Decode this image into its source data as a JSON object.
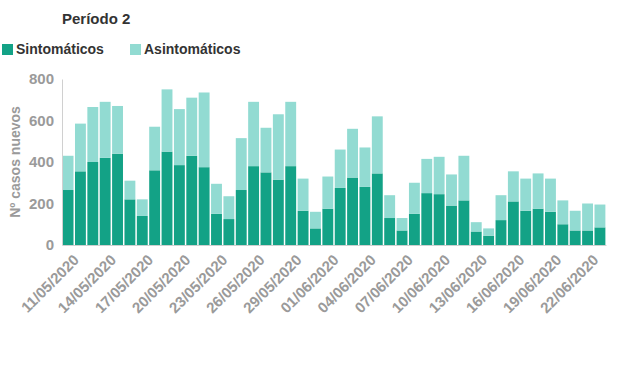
{
  "chart_data": {
    "type": "bar",
    "title": "Período 2",
    "y_label": "Nº casos nuevos",
    "stacked": true,
    "legend": "top-left",
    "categories": [
      "11/05/2020",
      null,
      null,
      "14/05/2020",
      null,
      null,
      "17/05/2020",
      null,
      null,
      "20/05/2020",
      null,
      null,
      "23/05/2020",
      null,
      null,
      "26/05/2020",
      null,
      null,
      "29/05/2020",
      null,
      null,
      "01/06/2020",
      null,
      null,
      "04/06/2020",
      null,
      null,
      "07/06/2020",
      null,
      null,
      "10/06/2020",
      null,
      null,
      "13/06/2020",
      null,
      null,
      "16/06/2020",
      null,
      null,
      "19/06/2020",
      null,
      null,
      "22/06/2020",
      null
    ],
    "series": [
      {
        "name": "Sintomáticos",
        "color": "#13a286",
        "values": [
          265,
          355,
          400,
          420,
          440,
          220,
          140,
          360,
          450,
          385,
          430,
          375,
          150,
          125,
          265,
          380,
          350,
          315,
          380,
          165,
          80,
          175,
          275,
          325,
          280,
          345,
          130,
          70,
          150,
          250,
          245,
          190,
          215,
          65,
          45,
          120,
          210,
          165,
          175,
          160,
          100,
          70,
          70,
          85
        ]
      },
      {
        "name": "Asintomáticos",
        "color": "#92dbd2",
        "values": [
          165,
          230,
          265,
          270,
          230,
          90,
          80,
          210,
          300,
          270,
          280,
          360,
          145,
          110,
          250,
          310,
          215,
          315,
          310,
          155,
          80,
          155,
          185,
          235,
          190,
          275,
          110,
          60,
          150,
          165,
          180,
          150,
          215,
          45,
          35,
          120,
          145,
          155,
          170,
          160,
          115,
          95,
          130,
          110
        ]
      }
    ],
    "ylim": [
      0,
      800
    ],
    "yticks": [
      0,
      200,
      400,
      600,
      800
    ],
    "grid": false
  }
}
